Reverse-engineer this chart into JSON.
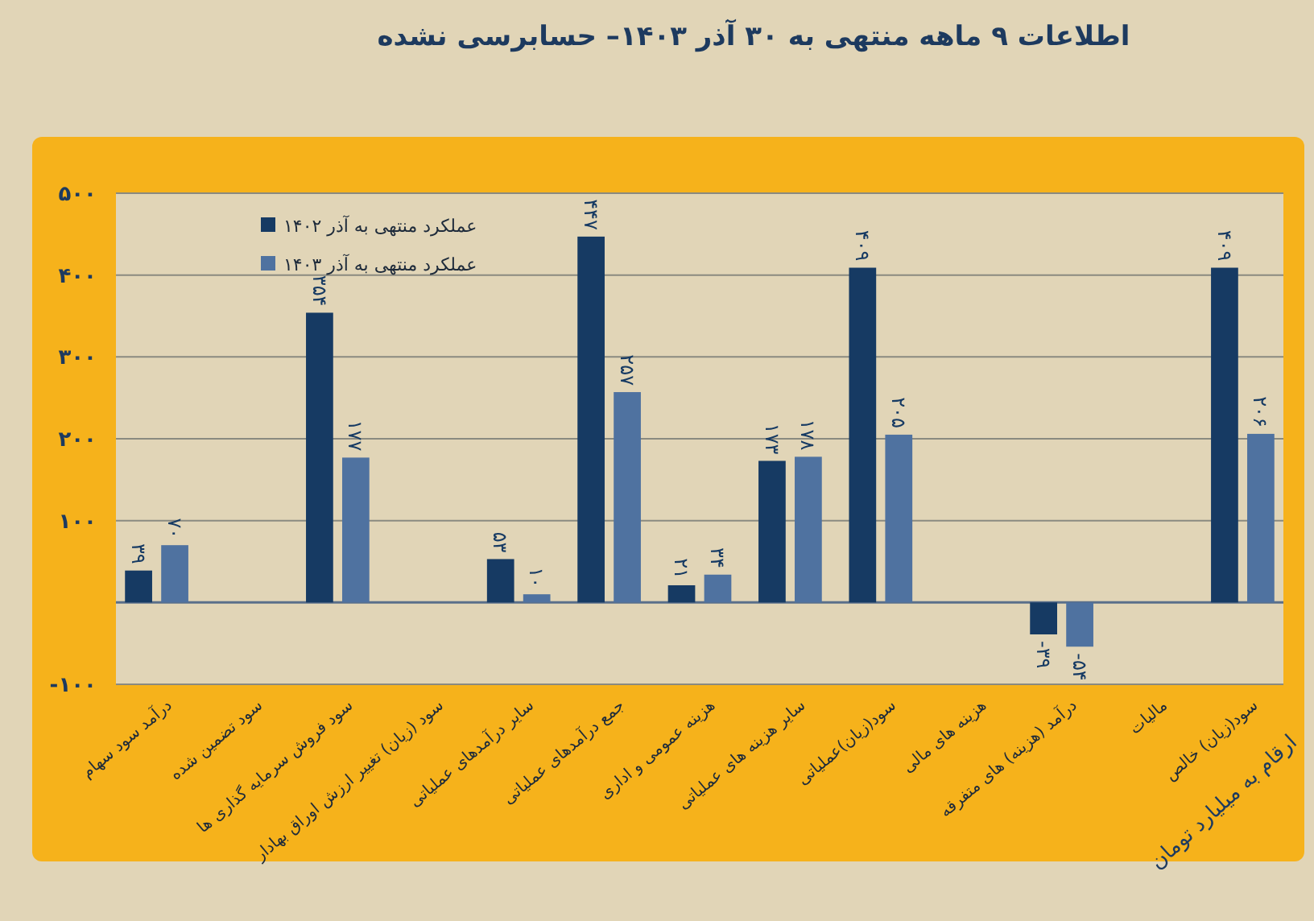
{
  "chart_data": {
    "type": "bar",
    "title": "اطلاعات ۹  ماهه منتهی به ۳۰ آذر ۱۴۰۳– حسابرسی نشده",
    "categories": [
      "درآمد سود سهام",
      "سود تضمین شده",
      "سود فروش سرمایه گذاری ها",
      "سود (زیان) تغییر ارزش اوراق بهادار",
      "سایر درآمدهای عملیاتی",
      "جمع درآمدهای عملیاتی",
      "هزینه عمومی و اداری",
      "سایر هزینه های عملیاتی",
      "سود(زیان)عملیاتی",
      "هزینه های مالی",
      "درآمد (هزینه) های متفرقه",
      "مالیات",
      "سود(زیان) خالص"
    ],
    "series": [
      {
        "name": "عملکرد منتهی به آذر ۱۴۰۲",
        "color": "#163a63",
        "values": [
          39,
          null,
          354,
          null,
          53,
          447,
          21,
          173,
          409,
          null,
          -39,
          null,
          409
        ],
        "value_labels": [
          "۳۹",
          null,
          "۳۵۴",
          null,
          "۵۳",
          "۴۴۷",
          "۲۱",
          "۱۷۳",
          "۴۰۹",
          null,
          "-۳۹",
          null,
          "۴۰۹"
        ]
      },
      {
        "name": "عملکرد منتهی به آذر ۱۴۰۳",
        "color": "#4f72a0",
        "values": [
          70,
          null,
          177,
          null,
          10,
          257,
          34,
          178,
          205,
          null,
          -54,
          null,
          206
        ],
        "value_labels": [
          "۷۰",
          null,
          "۱۷۷",
          null,
          "۱۰",
          "۲۵۷",
          "۳۴",
          "۱۷۸",
          "۲۰۵",
          null,
          "-۵۴",
          null,
          "۲۰۶"
        ]
      }
    ],
    "ylim": [
      -100,
      500
    ],
    "yticks": [
      {
        "value": -100,
        "label": "-۱۰۰"
      },
      {
        "value": 100,
        "label": "۱۰۰"
      },
      {
        "value": 200,
        "label": "۲۰۰"
      },
      {
        "value": 300,
        "label": "۳۰۰"
      },
      {
        "value": 400,
        "label": "۴۰۰"
      },
      {
        "value": 500,
        "label": "۵۰۰"
      }
    ],
    "grid": "y",
    "ref_lines": [
      {
        "axis": "y",
        "value": 0,
        "color": "#5a6f8a"
      }
    ],
    "legend": "top left",
    "annotations": [
      "ارقام به میلیارد تومان"
    ]
  }
}
